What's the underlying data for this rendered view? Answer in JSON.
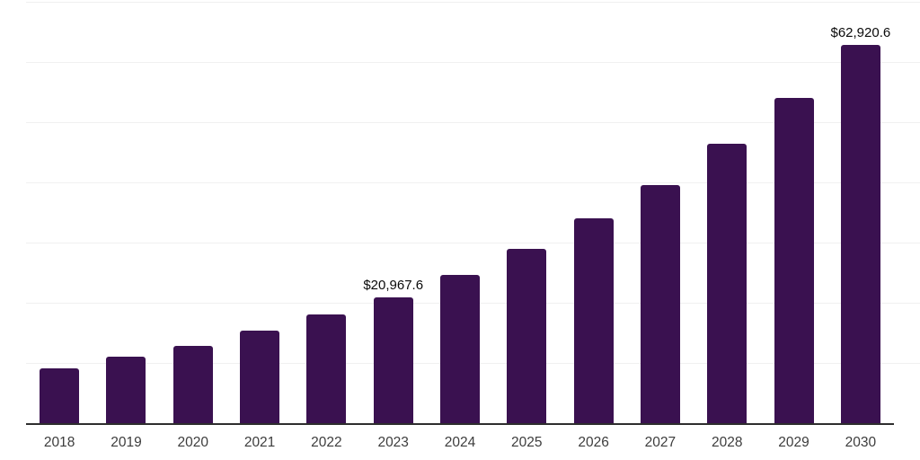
{
  "chart": {
    "background_color": "#ffffff",
    "bar_color": "#3a1150",
    "axis_line_color": "#2e2e2e",
    "gridline_color": "#f0f0f0",
    "tick_label_color": "#3d3d3d",
    "data_label_color": "#0a0a0a"
  },
  "chart_data": {
    "type": "bar",
    "title": "",
    "xlabel": "",
    "ylabel": "",
    "categories": [
      "2018",
      "2019",
      "2020",
      "2021",
      "2022",
      "2023",
      "2024",
      "2025",
      "2026",
      "2027",
      "2028",
      "2029",
      "2030"
    ],
    "values": [
      9200,
      11150,
      12950,
      15450,
      18150,
      20967.6,
      24700,
      29000,
      34050,
      39550,
      46400,
      54100,
      62920.6
    ],
    "data_labels": [
      "",
      "",
      "",
      "",
      "",
      "$20,967.6",
      "",
      "",
      "",
      "",
      "",
      "",
      "$62,920.6"
    ],
    "ylim": [
      0,
      70000
    ],
    "gridline_step": 10000,
    "grid_visible": true,
    "y_axis_ticks_visible": false,
    "legend_position": "none"
  }
}
